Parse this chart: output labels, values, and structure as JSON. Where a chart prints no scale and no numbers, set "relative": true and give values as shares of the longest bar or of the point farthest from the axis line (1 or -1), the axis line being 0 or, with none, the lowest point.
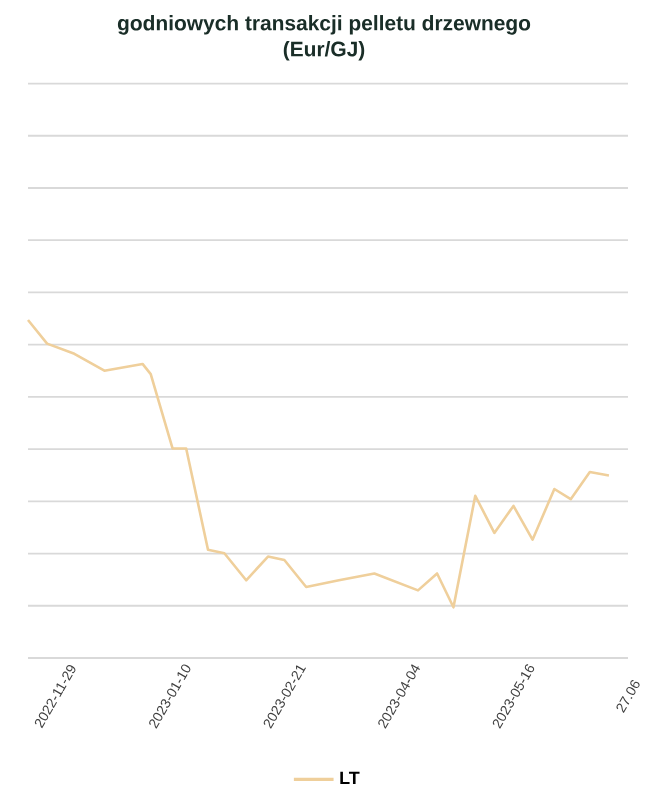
{
  "chart_data": {
    "type": "line",
    "title": "godniowych transakcji pelletu drzewnego",
    "subtitle": "(Eur/GJ)",
    "relative": true,
    "grid": "y",
    "legend": "bottom",
    "marker": "none",
    "line_style": "solid",
    "x": [
      "2022-11-19",
      "2022-11-26",
      "2022-12-06",
      "2022-12-17",
      "2022-12-31",
      "2023-01-03",
      "2023-01-11",
      "2023-01-16",
      "2023-01-24",
      "2023-01-30",
      "2023-02-07",
      "2023-02-15",
      "2023-02-21",
      "2023-03-01",
      "2023-03-13",
      "2023-03-26",
      "2023-04-11",
      "2023-04-18",
      "2023-04-24",
      "2023-05-02",
      "2023-05-09",
      "2023-05-16",
      "2023-05-23",
      "2023-05-31",
      "2023-06-06",
      "2023-06-13",
      "2023-06-20"
    ],
    "xlim": [
      "2022-11-19",
      "2023-06-27"
    ],
    "xticks": [
      {
        "value": "2022-11-29",
        "label": "2022-11-29"
      },
      {
        "value": "2023-01-10",
        "label": "2023-01-10"
      },
      {
        "value": "2023-02-21",
        "label": "2023-02-21"
      },
      {
        "value": "2023-04-04",
        "label": "2023-04-04"
      },
      {
        "value": "2023-05-16",
        "label": "2023-05-16"
      },
      {
        "value": "2023-06-27",
        "label": "27.06"
      }
    ],
    "series": [
      {
        "name": "LT",
        "color": "#efcf9b",
        "values": [
          1.0,
          0.93,
          0.9,
          0.85,
          0.87,
          0.84,
          0.62,
          0.62,
          0.32,
          0.31,
          0.23,
          0.3,
          0.29,
          0.21,
          0.23,
          0.25,
          0.2,
          0.25,
          0.15,
          0.48,
          0.37,
          0.45,
          0.35,
          0.5,
          0.47,
          0.55,
          0.54
        ]
      }
    ]
  }
}
